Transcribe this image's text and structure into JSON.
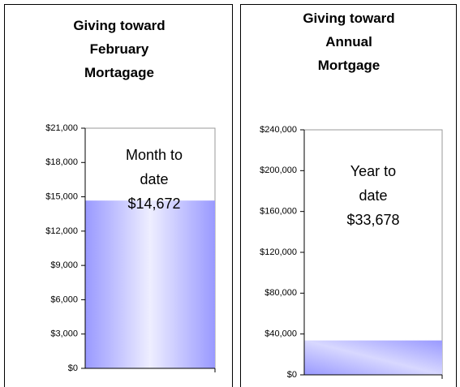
{
  "chart_data": [
    {
      "type": "bar",
      "title": "Giving toward February Mortagage",
      "annotation": "Month to date",
      "categories": [
        null
      ],
      "values": [
        14672
      ],
      "value_labels": [
        "$14,672"
      ],
      "color": "#9999ff",
      "ylim": [
        0,
        21000
      ],
      "yticks": [
        {
          "value": 0,
          "label": "$0"
        },
        {
          "value": 3000,
          "label": "$3,000"
        },
        {
          "value": 6000,
          "label": "$6,000"
        },
        {
          "value": 9000,
          "label": "$9,000"
        },
        {
          "value": 12000,
          "label": "$12,000"
        },
        {
          "value": 15000,
          "label": "$15,000"
        },
        {
          "value": 18000,
          "label": "$18,000"
        },
        {
          "value": 21000,
          "label": "$21,000"
        }
      ]
    },
    {
      "type": "bar",
      "title": "Giving toward Annual Mortgage",
      "annotation": "Year to date",
      "categories": [
        null
      ],
      "values": [
        33678
      ],
      "value_labels": [
        "$33,678"
      ],
      "color": "#9999ff",
      "ylim": [
        0,
        240000
      ],
      "yticks": [
        {
          "value": 0,
          "label": "$0"
        },
        {
          "value": 40000,
          "label": "$40,000"
        },
        {
          "value": 80000,
          "label": "$80,000"
        },
        {
          "value": 120000,
          "label": "$120,000"
        },
        {
          "value": 160000,
          "label": "$160,000"
        },
        {
          "value": 200000,
          "label": "$200,000"
        },
        {
          "value": 240000,
          "label": "$240,000"
        }
      ]
    }
  ]
}
